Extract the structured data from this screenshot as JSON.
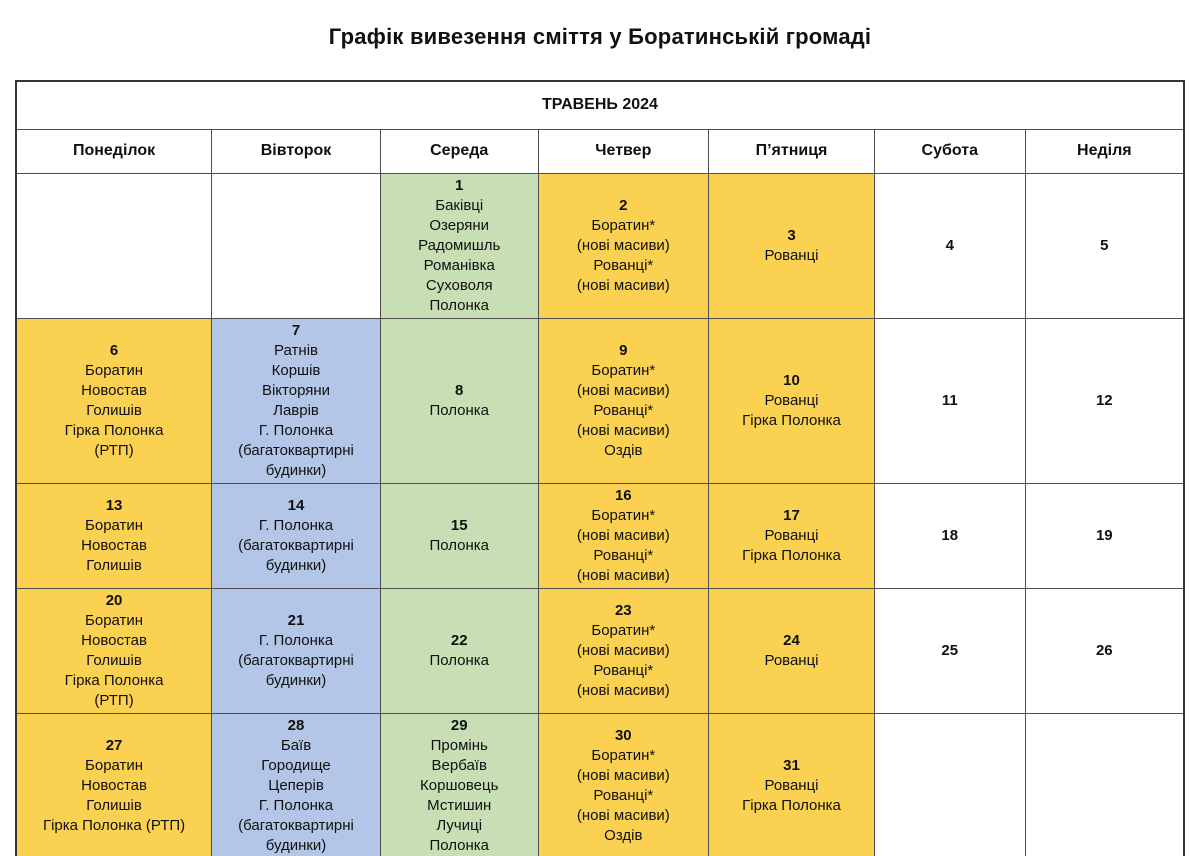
{
  "title": "Графік вивезення сміття у Боратинській громаді",
  "calendar": {
    "month_header": "ТРАВЕНЬ 2024",
    "day_headers": [
      "Понеділок",
      "Вівторок",
      "Середа",
      "Четвер",
      "П’ятниця",
      "Субота",
      "Неділя"
    ],
    "colors": {
      "yellow": "#FBD151",
      "green": "#C8DFB5",
      "blue": "#B3C6E7",
      "white": "#FFFFFF",
      "border_inner": "#4d4d4d",
      "border_outer": "#333333",
      "text": "#111111"
    },
    "weeks": [
      [
        {
          "day": "",
          "lines": [],
          "color": "white"
        },
        {
          "day": "",
          "lines": [],
          "color": "white"
        },
        {
          "day": "1",
          "lines": [
            "Баківці",
            "Озеряни",
            "Радомишль",
            "Романівка",
            "Суховоля",
            "Полонка"
          ],
          "color": "green"
        },
        {
          "day": "2",
          "lines": [
            "Боратин*",
            "(нові масиви)",
            "Рованці*",
            "(нові масиви)"
          ],
          "color": "yellow"
        },
        {
          "day": "3",
          "lines": [
            "Рованці"
          ],
          "color": "yellow"
        },
        {
          "day": "4",
          "lines": [],
          "color": "white"
        },
        {
          "day": "5",
          "lines": [],
          "color": "white"
        }
      ],
      [
        {
          "day": "6",
          "lines": [
            "Боратин",
            "Новостав",
            "Голишів",
            "Гірка Полонка",
            "(РТП)"
          ],
          "color": "yellow"
        },
        {
          "day": "7",
          "lines": [
            "Ратнів",
            "Коршів",
            "Вікторяни",
            "Лаврів",
            "Г. Полонка",
            "(багатоквартирні будинки)"
          ],
          "color": "blue"
        },
        {
          "day": "8",
          "lines": [
            "Полонка"
          ],
          "color": "green"
        },
        {
          "day": "9",
          "lines": [
            "Боратин*",
            "(нові масиви)",
            "Рованці*",
            "(нові масиви)",
            "Оздів"
          ],
          "color": "yellow"
        },
        {
          "day": "10",
          "lines": [
            "Рованці",
            "Гірка Полонка"
          ],
          "color": "yellow"
        },
        {
          "day": "11",
          "lines": [],
          "color": "white"
        },
        {
          "day": "12",
          "lines": [],
          "color": "white"
        }
      ],
      [
        {
          "day": "13",
          "lines": [
            "Боратин",
            "Новостав",
            "Голишів"
          ],
          "color": "yellow"
        },
        {
          "day": "14",
          "lines": [
            "Г. Полонка",
            "(багатоквартирні будинки)"
          ],
          "color": "blue"
        },
        {
          "day": "15",
          "lines": [
            "Полонка"
          ],
          "color": "green"
        },
        {
          "day": "16",
          "lines": [
            "Боратин*",
            "(нові масиви)",
            "Рованці*",
            "(нові масиви)"
          ],
          "color": "yellow"
        },
        {
          "day": "17",
          "lines": [
            "Рованці",
            "Гірка Полонка"
          ],
          "color": "yellow"
        },
        {
          "day": "18",
          "lines": [],
          "color": "white"
        },
        {
          "day": "19",
          "lines": [],
          "color": "white"
        }
      ],
      [
        {
          "day": "20",
          "lines": [
            "Боратин",
            "Новостав",
            "Голишів",
            "Гірка Полонка",
            "(РТП)"
          ],
          "color": "yellow"
        },
        {
          "day": "21",
          "lines": [
            "Г. Полонка",
            "(багатоквартирні будинки)"
          ],
          "color": "blue"
        },
        {
          "day": "22",
          "lines": [
            "Полонка"
          ],
          "color": "green"
        },
        {
          "day": "23",
          "lines": [
            "Боратин*",
            "(нові масиви)",
            "Рованці*",
            "(нові масиви)"
          ],
          "color": "yellow"
        },
        {
          "day": "24",
          "lines": [
            "Рованці"
          ],
          "color": "yellow"
        },
        {
          "day": "25",
          "lines": [],
          "color": "white"
        },
        {
          "day": "26",
          "lines": [],
          "color": "white"
        }
      ],
      [
        {
          "day": "27",
          "lines": [
            "Боратин",
            "Новостав",
            "Голишів",
            "Гірка Полонка (РТП)"
          ],
          "color": "yellow"
        },
        {
          "day": "28",
          "lines": [
            "Баїв",
            "Городище",
            "Цеперів",
            "Г. Полонка",
            "(багатоквартирні будинки)"
          ],
          "color": "blue"
        },
        {
          "day": "29",
          "lines": [
            "Промінь",
            "Вербаїв",
            "Коршовець",
            "Мстишин",
            "Лучиці",
            "Полонка"
          ],
          "color": "green"
        },
        {
          "day": "30",
          "lines": [
            "Боратин*",
            "(нові масиви)",
            "Рованці*",
            "(нові масиви)",
            "Оздів"
          ],
          "color": "yellow"
        },
        {
          "day": "31",
          "lines": [
            "Рованці",
            "Гірка Полонка"
          ],
          "color": "yellow"
        },
        {
          "day": "",
          "lines": [],
          "color": "white"
        },
        {
          "day": "",
          "lines": [],
          "color": "white"
        }
      ]
    ]
  }
}
